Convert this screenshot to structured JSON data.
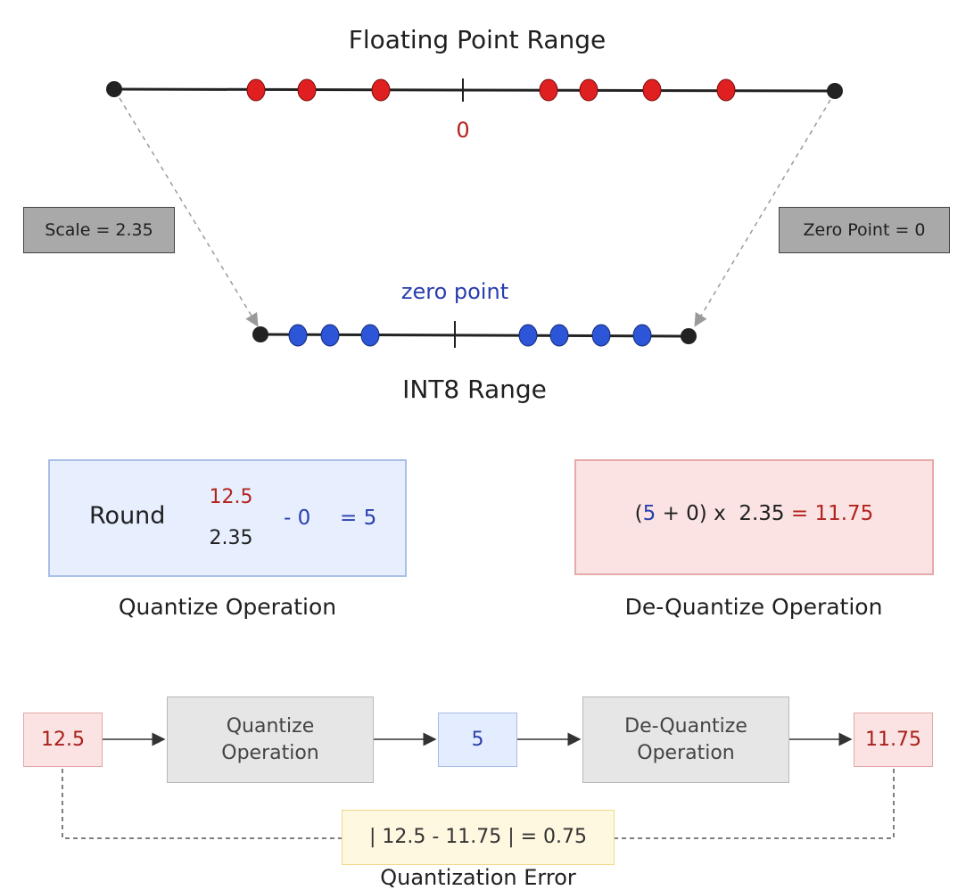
{
  "float_range": {
    "title": "Floating Point Range",
    "zero_label": "0",
    "point_color": "#e02020",
    "endpoint_color": "#222222"
  },
  "int8_range": {
    "title": "INT8 Range",
    "zero_label": "zero point",
    "point_color": "#2d55d8",
    "endpoint_color": "#222222"
  },
  "scale_label": "Scale = 2.35",
  "zero_point_label": "Zero Point = 0",
  "quantize": {
    "round": "Round",
    "numerator": "12.5",
    "denominator": "2.35",
    "minus": "- 0",
    "result": "= 5",
    "caption": "Quantize Operation"
  },
  "dequantize": {
    "open": "(",
    "value": "5",
    "plus_zero": "+ 0)",
    "times_scale": "x  2.35",
    "equals": "=",
    "result": "11.75",
    "caption": "De-Quantize Operation"
  },
  "flow": {
    "input": "12.5",
    "quantize_op": "Quantize\nOperation",
    "quantized": "5",
    "dequantize_op": "De-Quantize\nOperation",
    "output": "11.75",
    "error_formula": "| 12.5 - 11.75 | = 0.75",
    "error_caption": "Quantization Error"
  },
  "colors": {
    "red_text": "#b3231d",
    "blue_text": "#2a3fae"
  }
}
